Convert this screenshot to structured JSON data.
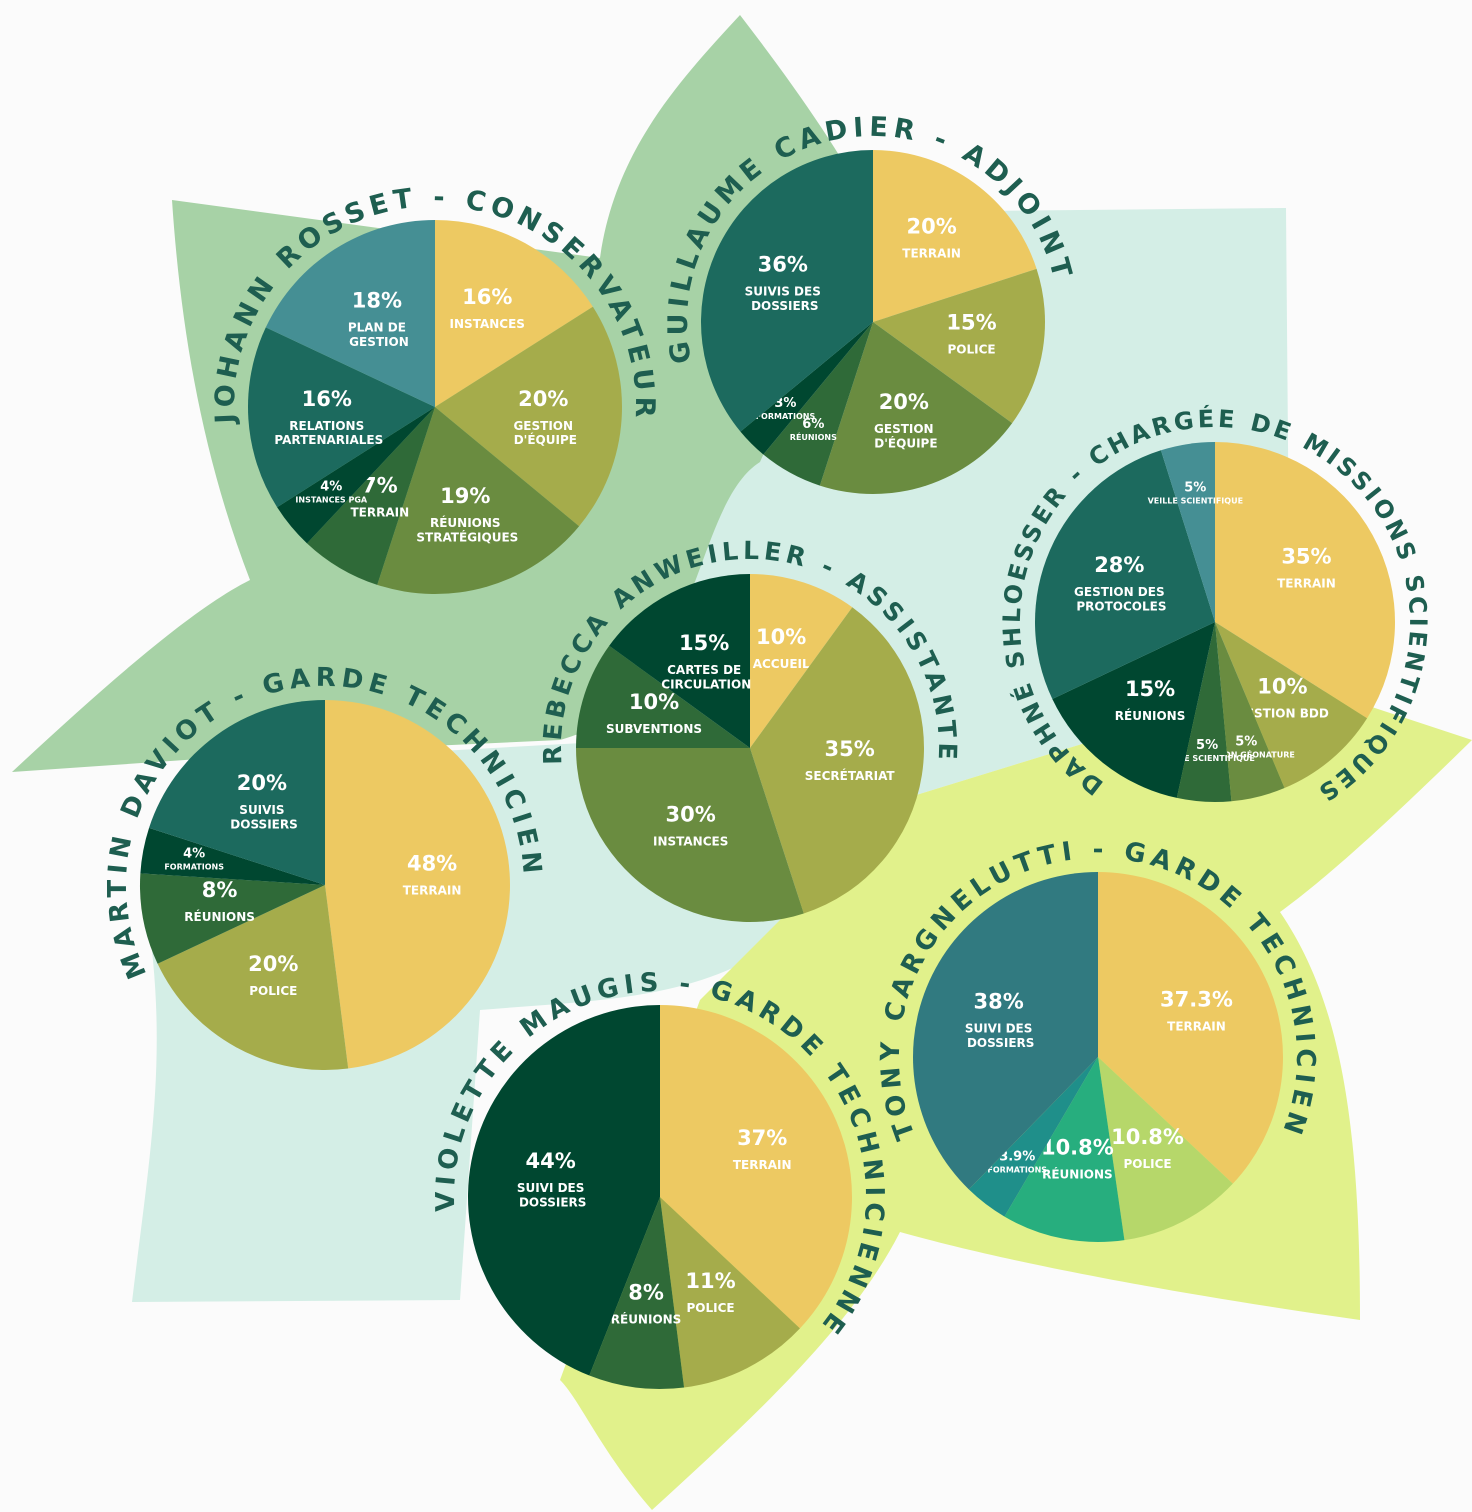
{
  "chart_data": [
    {
      "type": "pie",
      "title": "JOHANN ROSSET - CONSERVATEUR",
      "categories": [
        "INSTANCES",
        "GESTION D'ÉQUIPE",
        "RÉUNIONS STRATÉGIQUES",
        "TERRAIN",
        "INSTANCES PGA",
        "RELATIONS PARTENARIALES",
        "PLAN DE GESTION"
      ],
      "values": [
        16,
        20,
        19,
        7,
        4,
        16,
        18
      ],
      "value_labels": [
        "16%",
        "20%",
        "19%",
        "7%",
        "4%",
        "16%",
        "18%"
      ],
      "colors": [
        "#edc962",
        "#a5ac4b",
        "#6a8c40",
        "#2f6a38",
        "#004730",
        "#1c6a5e",
        "#458f94"
      ]
    },
    {
      "type": "pie",
      "title": "GUILLAUME CADIER - ADJOINT",
      "categories": [
        "TERRAIN",
        "POLICE",
        "GESTION D'ÉQUIPE",
        "RÉUNIONS",
        "FORMATIONS",
        "SUIVIS DES DOSSIERS"
      ],
      "values": [
        20,
        15,
        20,
        6,
        3,
        36
      ],
      "value_labels": [
        "20%",
        "15%",
        "20%",
        "6%",
        "3%",
        "36%"
      ],
      "colors": [
        "#edc962",
        "#a5ac4b",
        "#6a8c40",
        "#2f6a38",
        "#004730",
        "#1c6a5e"
      ]
    },
    {
      "type": "pie",
      "title": "DAPHNÉ SHLOESSER - CHARGÉE DE MISSIONS SCIENTIFIQUES",
      "categories": [
        "TERRAIN",
        "GESTION BDD",
        "GESTION GÉONATURE",
        "VEILLE SCIENTIFIQUE",
        "RÉUNIONS",
        "GESTION DES PROTOCOLES",
        "VEILLE SCIENTIFIQUE"
      ],
      "values": [
        35,
        10,
        5,
        5,
        15,
        28,
        5
      ],
      "value_labels": [
        "35%",
        "10%",
        "5%",
        "5%",
        "15%",
        "28%",
        "5%"
      ],
      "colors": [
        "#edc962",
        "#a5ac4b",
        "#6a8c40",
        "#2f6a38",
        "#004730",
        "#1c6a5e",
        "#458f94"
      ]
    },
    {
      "type": "pie",
      "title": "REBECCA ANWEILLER - ASSISTANTE",
      "categories": [
        "ACCUEIL",
        "SECRÉTARIAT",
        "INSTANCES",
        "SUBVENTIONS",
        "CARTES DE CIRCULATION"
      ],
      "values": [
        10,
        35,
        30,
        10,
        15
      ],
      "value_labels": [
        "10%",
        "35%",
        "30%",
        "10%",
        "15%"
      ],
      "colors": [
        "#edc962",
        "#a5ac4b",
        "#6a8c40",
        "#2f6a38",
        "#004730"
      ]
    },
    {
      "type": "pie",
      "title": "MARTIN DAVIOT - GARDE TECHNICIEN",
      "categories": [
        "TERRAIN",
        "POLICE",
        "RÉUNIONS",
        "FORMATIONS",
        "SUIVIS DOSSIERS"
      ],
      "values": [
        48,
        20,
        8,
        4,
        20
      ],
      "value_labels": [
        "48%",
        "20%",
        "8%",
        "4%",
        "20%"
      ],
      "colors": [
        "#edc962",
        "#a5ac4b",
        "#2f6a38",
        "#004730",
        "#1c6a5e"
      ]
    },
    {
      "type": "pie",
      "title": "VIOLETTE MAUGIS - GARDE TECHNICIENNE",
      "categories": [
        "TERRAIN",
        "POLICE",
        "RÉUNIONS",
        "SUIVI DES DOSSIERS"
      ],
      "values": [
        37,
        11,
        8,
        44
      ],
      "value_labels": [
        "37%",
        "11%",
        "8%",
        "44%"
      ],
      "colors": [
        "#edc962",
        "#a5ac4b",
        "#2f6a38",
        "#004730"
      ]
    },
    {
      "type": "pie",
      "title": "TONY CARGNELUTTI - GARDE TECHNICIEN",
      "categories": [
        "TERRAIN",
        "POLICE",
        "RÉUNIONS",
        "FORMATIONS",
        "SUIVI DES DOSSIERS"
      ],
      "values": [
        37.3,
        10.8,
        10.8,
        3.9,
        38
      ],
      "value_labels": [
        "37.3%",
        "10.8%",
        "10.8%",
        "3.9%",
        "38%"
      ],
      "colors": [
        "#edc962",
        "#b6d76a",
        "#27ae7e",
        "#1f8f8a",
        "#317a80"
      ]
    }
  ]
}
